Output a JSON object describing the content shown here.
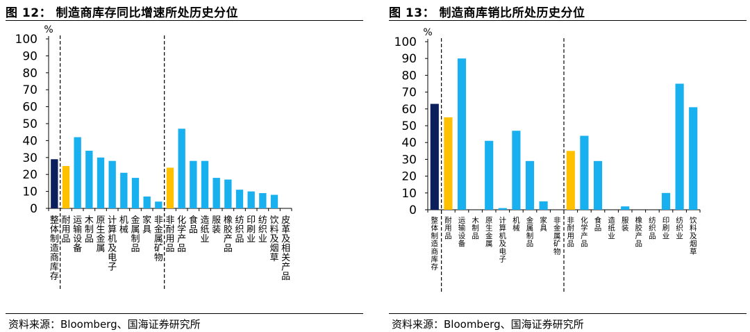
{
  "panels": [
    {
      "title": "图 12：  制造商库存同比增速所处历史分位",
      "source": "资料来源：Bloomberg、国海证券研究所"
    },
    {
      "title": "图 13：  制造商库销比所处历史分位",
      "source": "资料来源：Bloomberg、国海证券研究所"
    }
  ],
  "chart_data": [
    {
      "type": "bar",
      "title": "制造商库存同比增速所处历史分位",
      "ylabel": "%",
      "ylim": [
        0,
        100
      ],
      "yticks": [
        0,
        10,
        20,
        30,
        40,
        50,
        60,
        70,
        80,
        90,
        100
      ],
      "grid": false,
      "dividers_after": [
        0,
        9
      ],
      "categories": [
        "整体制造商库存",
        "耐用品",
        "运输设备",
        "木制品",
        "原生金属",
        "计算机及电子",
        "机械",
        "金属制品",
        "家具",
        "非金属矿物",
        "非耐用品",
        "化学产品",
        "食品",
        "造纸业",
        "服装",
        "橡胶产品",
        "纺织品",
        "印刷业",
        "纺织业",
        "饮料及烟草",
        "皮革及相关产品"
      ],
      "values": [
        29,
        25,
        42,
        34,
        30,
        28,
        21,
        18,
        7,
        4,
        24,
        47,
        28,
        28,
        18,
        17,
        11,
        10,
        9,
        8,
        0
      ],
      "colors": [
        "#0b1f5c",
        "#ffc000",
        "#19b0f0",
        "#19b0f0",
        "#19b0f0",
        "#19b0f0",
        "#19b0f0",
        "#19b0f0",
        "#19b0f0",
        "#19b0f0",
        "#ffc000",
        "#19b0f0",
        "#19b0f0",
        "#19b0f0",
        "#19b0f0",
        "#19b0f0",
        "#19b0f0",
        "#19b0f0",
        "#19b0f0",
        "#19b0f0",
        "#19b0f0"
      ]
    },
    {
      "type": "bar",
      "title": "制造商库销比所处历史分位",
      "ylabel": "%",
      "ylim": [
        0,
        100
      ],
      "yticks": [
        0,
        10,
        20,
        30,
        40,
        50,
        60,
        70,
        80,
        90,
        100
      ],
      "grid": false,
      "dividers_after": [
        0,
        9
      ],
      "categories": [
        "整体制造商库存",
        "耐用品",
        "运输设备",
        "木制品",
        "原生金属",
        "计算机及电子",
        "机械",
        "金属制品",
        "家具",
        "非金属矿物",
        "非耐用品",
        "化学产品",
        "食品",
        "造纸业",
        "服装",
        "橡胶产品",
        "纺织品",
        "印刷业",
        "纺织业",
        "饮料及烟草"
      ],
      "values": [
        63,
        55,
        90,
        0,
        41,
        1,
        47,
        29,
        5,
        0,
        35,
        44,
        29,
        0,
        2,
        0,
        0,
        10,
        75,
        61
      ],
      "colors": [
        "#0b1f5c",
        "#ffc000",
        "#19b0f0",
        "#19b0f0",
        "#19b0f0",
        "#19b0f0",
        "#19b0f0",
        "#19b0f0",
        "#19b0f0",
        "#19b0f0",
        "#ffc000",
        "#19b0f0",
        "#19b0f0",
        "#19b0f0",
        "#19b0f0",
        "#19b0f0",
        "#19b0f0",
        "#19b0f0",
        "#19b0f0",
        "#19b0f0"
      ]
    }
  ]
}
